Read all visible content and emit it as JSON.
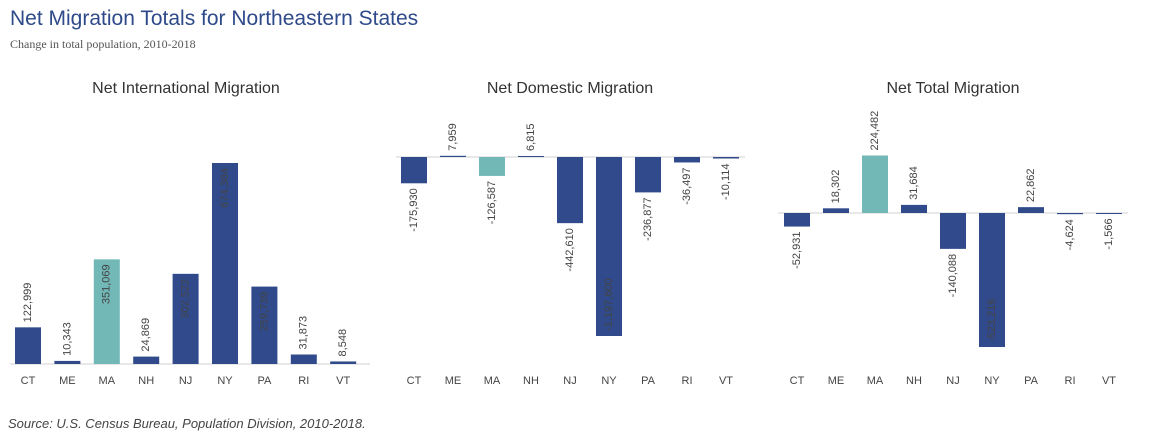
{
  "title": "Net Migration Totals for Northeastern States",
  "subtitle": "Change in total population, 2010-2018",
  "source": "Source: U.S. Census Bureau, Population Division, 2010-2018.",
  "colors": {
    "default": "#304a8b",
    "highlight": "#72b8b7",
    "title": "#2f4a8a"
  },
  "chart_data": [
    {
      "type": "bar",
      "title": "Net International Migration",
      "categories": [
        "CT",
        "ME",
        "MA",
        "NH",
        "NJ",
        "NY",
        "PA",
        "RI",
        "VT"
      ],
      "values": [
        122999,
        10343,
        351069,
        24869,
        302522,
        674384,
        259739,
        31873,
        8548
      ],
      "labels": [
        "122,999",
        "10,343",
        "351,069",
        "24,869",
        "302,522",
        "674,384",
        "259,739",
        "31,873",
        "8,548"
      ],
      "highlight": "MA"
    },
    {
      "type": "bar",
      "title": "Net Domestic Migration",
      "categories": [
        "CT",
        "ME",
        "MA",
        "NH",
        "NJ",
        "NY",
        "PA",
        "RI",
        "VT"
      ],
      "values": [
        -175930,
        7959,
        -126587,
        6815,
        -442610,
        -1197600,
        -236877,
        -36497,
        -10114
      ],
      "labels": [
        "-175,930",
        "7,959",
        "-126,587",
        "6,815",
        "-442,610",
        "-1,197,600",
        "-236,877",
        "-36,497",
        "-10,114"
      ],
      "highlight": "MA"
    },
    {
      "type": "bar",
      "title": "Net Total Migration",
      "categories": [
        "CT",
        "ME",
        "MA",
        "NH",
        "NJ",
        "NY",
        "PA",
        "RI",
        "VT"
      ],
      "values": [
        -52931,
        18302,
        224482,
        31684,
        -140088,
        -523216,
        22862,
        -4624,
        -1566
      ],
      "labels": [
        "-52,931",
        "18,302",
        "224,482",
        "31,684",
        "-140,088",
        "-523,216",
        "22,862",
        "-4,624",
        "-1,566"
      ],
      "highlight": "MA"
    }
  ]
}
